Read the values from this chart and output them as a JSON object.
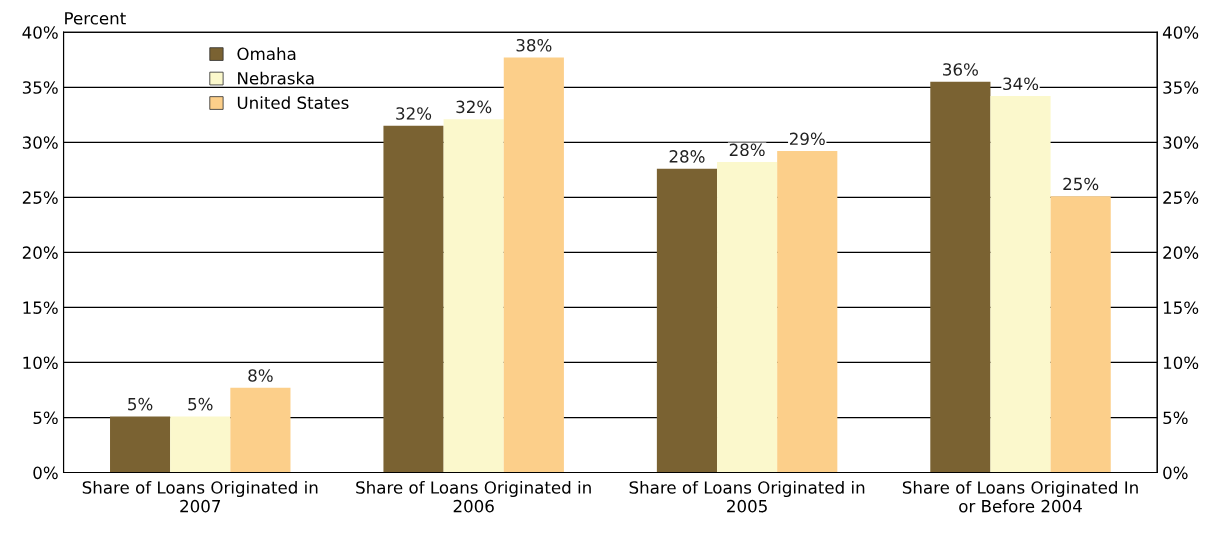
{
  "chart_data": {
    "type": "bar",
    "ylabel": "Percent",
    "categories": [
      "Share of Loans Originated in\n2007",
      "Share of Loans Originated in\n2006",
      "Share of Loans Originated in\n2005",
      "Share of Loans Originated In\nor Before 2004"
    ],
    "series": [
      {
        "name": "Omaha",
        "color": "#7a6232",
        "values": [
          5.1,
          31.5,
          27.6,
          35.5
        ],
        "value_labels": [
          "5%",
          "32%",
          "28%",
          "36%"
        ]
      },
      {
        "name": "Nebraska",
        "color": "#fbf8cc",
        "values": [
          5.1,
          32.1,
          28.2,
          34.2
        ],
        "value_labels": [
          "5%",
          "32%",
          "28%",
          "34%"
        ]
      },
      {
        "name": "United States",
        "color": "#fccf8a",
        "values": [
          7.7,
          37.7,
          29.2,
          25.1
        ],
        "value_labels": [
          "8%",
          "38%",
          "29%",
          "25%"
        ]
      }
    ],
    "ylim": [
      0,
      40
    ],
    "yticks": [
      {
        "value": 0,
        "label": "0%"
      },
      {
        "value": 5,
        "label": "5%"
      },
      {
        "value": 10,
        "label": "10%"
      },
      {
        "value": 15,
        "label": "15%"
      },
      {
        "value": 20,
        "label": "20%"
      },
      {
        "value": 25,
        "label": "25%"
      },
      {
        "value": 30,
        "label": "30%"
      },
      {
        "value": 35,
        "label": "35%"
      },
      {
        "value": 40,
        "label": "40%"
      }
    ],
    "y2lim": [
      0,
      40
    ],
    "y2ticks": [
      {
        "value": 0,
        "label": "0%"
      },
      {
        "value": 5,
        "label": "5%"
      },
      {
        "value": 10,
        "label": "10%"
      },
      {
        "value": 15,
        "label": "15%"
      },
      {
        "value": 20,
        "label": "20%"
      },
      {
        "value": 25,
        "label": "25%"
      },
      {
        "value": 30,
        "label": "30%"
      },
      {
        "value": 35,
        "label": "35%"
      },
      {
        "value": 40,
        "label": "40%"
      }
    ],
    "grid": "y",
    "legend": "top left"
  }
}
